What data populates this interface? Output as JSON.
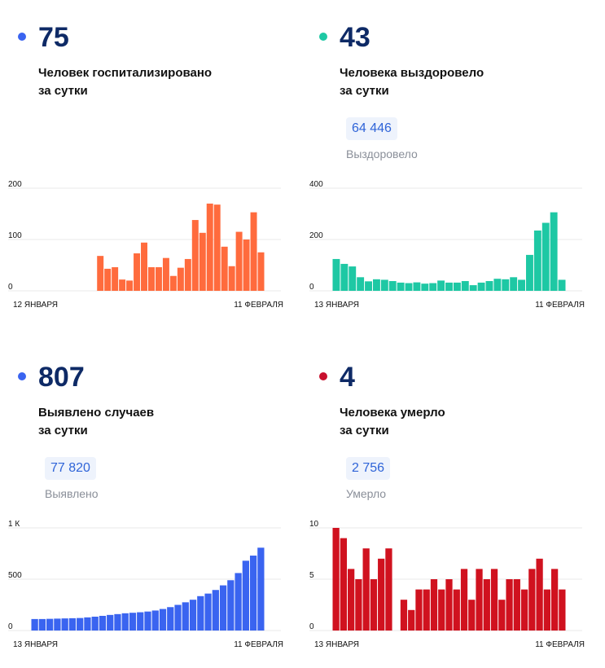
{
  "panels": [
    {
      "id": "hospitalized",
      "number": "75",
      "desc_line1": "Человек госпитализировано",
      "desc_line2": "за сутки",
      "dot_color": "#3a64f0",
      "bar_color": "#ff6b3d",
      "chart_data": {
        "type": "bar",
        "y_ticks": [
          "200",
          "100",
          "0"
        ],
        "ylim": [
          0,
          200
        ],
        "x_start_label": "12 ЯНВАРЯ",
        "x_end_label": "11 ФЕВРАЛЯ",
        "values": [
          null,
          null,
          null,
          null,
          null,
          null,
          null,
          null,
          null,
          68,
          43,
          46,
          22,
          20,
          73,
          94,
          46,
          46,
          64,
          29,
          45,
          62,
          138,
          113,
          170,
          168,
          86,
          48,
          115,
          100,
          153,
          75
        ]
      }
    },
    {
      "id": "recovered",
      "number": "43",
      "desc_line1": "Человека выздоровело",
      "desc_line2": "за сутки",
      "total": "64 446",
      "total_label": "Выздоровело",
      "dot_color": "#1ec8a4",
      "bar_color": "#1ec8a4",
      "chart_data": {
        "type": "bar",
        "y_ticks": [
          "400",
          "200",
          "0"
        ],
        "ylim": [
          0,
          400
        ],
        "x_start_label": "13 ЯНВАРЯ",
        "x_end_label": "11 ФЕВРАЛЯ",
        "values": [
          124,
          105,
          95,
          53,
          37,
          45,
          43,
          38,
          32,
          30,
          33,
          28,
          30,
          40,
          32,
          32,
          38,
          22,
          32,
          38,
          47,
          45,
          53,
          43,
          140,
          235,
          265,
          306,
          43
        ]
      }
    },
    {
      "id": "cases",
      "number": "807",
      "desc_line1": "Выявлено случаев",
      "desc_line2": "за сутки",
      "total": "77 820",
      "total_label": "Выявлено",
      "dot_color": "#3a64f0",
      "bar_color": "#3a64f0",
      "chart_data": {
        "type": "bar",
        "y_ticks": [
          "1 К",
          "500",
          "0"
        ],
        "ylim": [
          0,
          1000
        ],
        "x_start_label": "13 ЯНВАРЯ",
        "x_end_label": "11 ФЕВРАЛЯ",
        "values": [
          112,
          112,
          114,
          116,
          118,
          120,
          122,
          128,
          135,
          143,
          152,
          160,
          168,
          173,
          178,
          185,
          195,
          210,
          228,
          250,
          275,
          300,
          335,
          360,
          395,
          440,
          490,
          560,
          680,
          730,
          807
        ]
      }
    },
    {
      "id": "deaths",
      "number": "4",
      "desc_line1": "Человека умерло",
      "desc_line2": "за сутки",
      "total": "2 756",
      "total_label": "Умерло",
      "dot_color": "#c8102e",
      "bar_color": "#d0121f",
      "chart_data": {
        "type": "bar",
        "y_ticks": [
          "10",
          "5",
          "0"
        ],
        "ylim": [
          0,
          10
        ],
        "x_start_label": "13 ЯНВАРЯ",
        "x_end_label": "11 ФЕВРАЛЯ",
        "values": [
          10,
          9,
          6,
          5,
          8,
          5,
          7,
          8,
          null,
          3,
          2,
          4,
          4,
          5,
          4,
          5,
          4,
          6,
          3,
          6,
          5,
          6,
          3,
          5,
          5,
          4,
          6,
          7,
          4,
          6,
          4
        ]
      }
    }
  ]
}
